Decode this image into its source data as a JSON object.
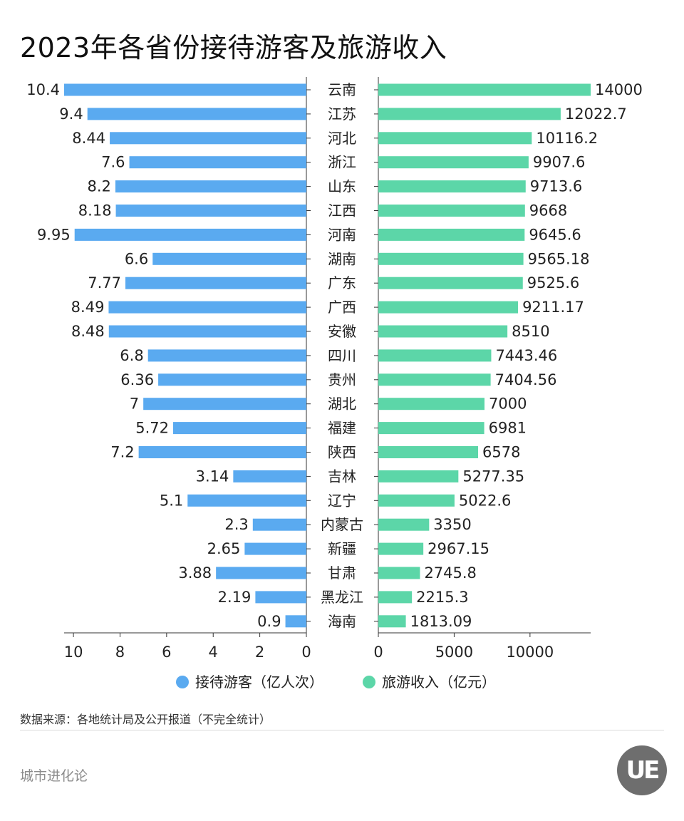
{
  "title": "2023年各省份接待游客及旅游收入",
  "chart_data": {
    "type": "bar",
    "orientation": "horizontal-butterfly",
    "categories": [
      "云南",
      "江苏",
      "河北",
      "浙江",
      "山东",
      "江西",
      "河南",
      "湖南",
      "广东",
      "广西",
      "安徽",
      "四川",
      "贵州",
      "湖北",
      "福建",
      "陕西",
      "吉林",
      "辽宁",
      "内蒙古",
      "新疆",
      "甘肃",
      "黑龙江",
      "海南"
    ],
    "series": [
      {
        "name": "接待游客（亿人次）",
        "color": "#5aaaf0",
        "side": "left",
        "xlim": [
          0,
          10.4
        ],
        "ticks": [
          "10",
          "8",
          "6",
          "4",
          "2",
          "0"
        ],
        "values": [
          10.4,
          9.4,
          8.44,
          7.6,
          8.2,
          8.18,
          9.95,
          6.6,
          7.77,
          8.49,
          8.48,
          6.8,
          6.36,
          7,
          5.72,
          7.2,
          3.14,
          5.1,
          2.3,
          2.65,
          3.88,
          2.19,
          0.9
        ],
        "labels": [
          "10.4",
          "9.4",
          "8.44",
          "7.6",
          "8.2",
          "8.18",
          "9.95",
          "6.6",
          "7.77",
          "8.49",
          "8.48",
          "6.8",
          "6.36",
          "7",
          "5.72",
          "7.2",
          "3.14",
          "5.1",
          "2.3",
          "2.65",
          "3.88",
          "2.19",
          "0.9"
        ]
      },
      {
        "name": "旅游收入（亿元）",
        "color": "#5cd6a8",
        "side": "right",
        "xlim": [
          0,
          14000
        ],
        "ticks": [
          "0",
          "5000",
          "10000"
        ],
        "values": [
          14000,
          12022.7,
          10116.2,
          9907.6,
          9713.6,
          9668,
          9645.6,
          9565.18,
          9525.6,
          9211.17,
          8510,
          7443.46,
          7404.56,
          7000,
          6981,
          6578,
          5277.35,
          5022.6,
          3350,
          2967.15,
          2745.8,
          2215.3,
          1813.09
        ],
        "labels": [
          "14000",
          "12022.7",
          "10116.2",
          "9907.6",
          "9713.6",
          "9668",
          "9645.6",
          "9565.18",
          "9525.6",
          "9211.17",
          "8510",
          "7443.46",
          "7404.56",
          "7000",
          "6981",
          "6578",
          "5277.35",
          "5022.6",
          "3350",
          "2967.15",
          "2745.8",
          "2215.3",
          "1813.09"
        ]
      }
    ],
    "legend_position": "bottom-center",
    "grid": false
  },
  "footer": {
    "source": "数据来源：各地统计局及公开报道（不完全统计）",
    "brand": "城市进化论",
    "logo_text": "UE"
  }
}
